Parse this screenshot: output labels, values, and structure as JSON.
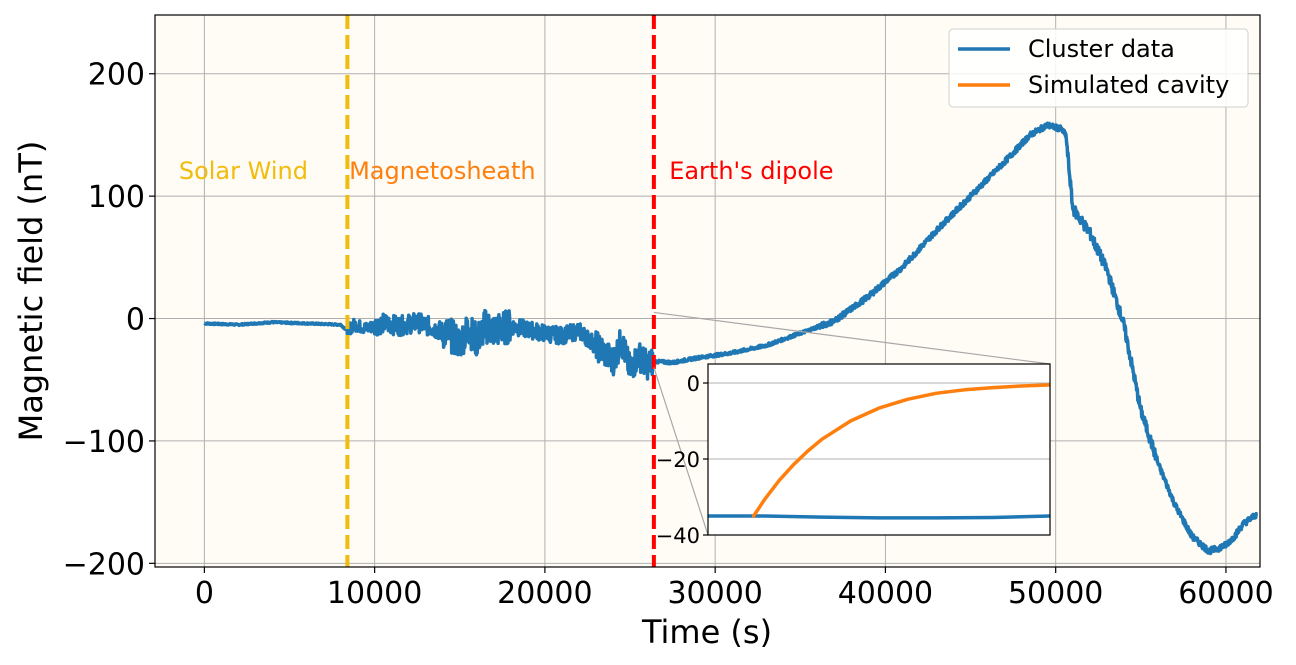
{
  "chart_data": {
    "type": "line",
    "xlabel": "Time (s)",
    "ylabel": "Magnetic field (nT)",
    "xlim": [
      -2900,
      62000
    ],
    "ylim": [
      -203,
      248
    ],
    "xticks": [
      0,
      10000,
      20000,
      30000,
      40000,
      50000,
      60000
    ],
    "xtick_labels": [
      "0",
      "10000",
      "20000",
      "30000",
      "40000",
      "50000",
      "60000"
    ],
    "yticks": [
      -200,
      -100,
      0,
      100,
      200
    ],
    "ytick_labels": [
      "−200",
      "−100",
      "0",
      "100",
      "200"
    ],
    "grid": true,
    "legend_position": "top-right",
    "background_color": "#fffcf5",
    "series": [
      {
        "name": "Cluster data",
        "color": "#1f77b4",
        "x": [
          0,
          2000,
          4000,
          6000,
          8000,
          8400,
          8800,
          9500,
          10500,
          11500,
          12500,
          13500,
          14500,
          15000,
          15500,
          16000,
          16500,
          17000,
          17500,
          18000,
          19000,
          20000,
          21000,
          22000,
          23000,
          23500,
          24000,
          24500,
          25000,
          25500,
          26000,
          26400,
          27500,
          29000,
          31000,
          33000,
          35000,
          37000,
          39000,
          41000,
          43000,
          45000,
          47000,
          48500,
          49500,
          50300,
          50600,
          51000,
          52000,
          53000,
          54000,
          55000,
          56000,
          57000,
          58000,
          59000,
          59500,
          60000,
          60500,
          61000,
          61800
        ],
        "y": [
          -4,
          -5,
          -3,
          -4,
          -5,
          -10,
          -5,
          -8,
          -4,
          -6,
          -3,
          -8,
          -14,
          -20,
          -8,
          -18,
          -6,
          -10,
          -8,
          -6,
          -9,
          -12,
          -14,
          -10,
          -22,
          -28,
          -35,
          -18,
          -42,
          -30,
          -38,
          -35,
          -36,
          -32,
          -28,
          -22,
          -12,
          -2,
          18,
          42,
          72,
          100,
          128,
          150,
          158,
          155,
          150,
          90,
          70,
          40,
          -5,
          -75,
          -118,
          -152,
          -178,
          -190,
          -188,
          -185,
          -178,
          -168,
          -160
        ]
      },
      {
        "name": "Simulated cavity",
        "color": "#ff7f0e",
        "x": [],
        "y": []
      }
    ],
    "vlines": [
      {
        "x": 8400,
        "color": "#f1bc0c"
      },
      {
        "x": 26400,
        "color": "#ff0000"
      }
    ],
    "annotations": [
      {
        "text": "Solar Wind",
        "x": -1500,
        "y": 114,
        "color": "#f1bc0c"
      },
      {
        "text": "Magnetosheath",
        "x": 8500,
        "y": 114,
        "color": "#ff7f0e"
      },
      {
        "text": "Earth's dipole",
        "x": 27300,
        "y": 114,
        "color": "#ff0000"
      }
    ],
    "inset": {
      "xlim": [
        26400,
        27000
      ],
      "ylim": [
        -40,
        5
      ],
      "yticks": [
        -40,
        -20,
        0
      ],
      "ytick_labels": [
        "−40",
        "−20",
        "0"
      ],
      "grid": true,
      "series": [
        {
          "name": "Cluster data",
          "color": "#1f77b4",
          "x": [
            26400,
            26500,
            26600,
            26700,
            26800,
            26900,
            27000
          ],
          "y": [
            -35.0,
            -35.0,
            -35.3,
            -35.5,
            -35.5,
            -35.4,
            -35.0
          ]
        },
        {
          "name": "Simulated cavity",
          "color": "#ff7f0e",
          "x": [
            26480,
            26500,
            26525,
            26550,
            26575,
            26600,
            26650,
            26700,
            26750,
            26800,
            26850,
            26900,
            26950,
            27000
          ],
          "y": [
            -35,
            -30.5,
            -25.6,
            -21.5,
            -17.9,
            -14.8,
            -10.0,
            -6.6,
            -4.3,
            -2.7,
            -1.8,
            -1.2,
            -0.8,
            -0.5
          ]
        }
      ]
    }
  }
}
